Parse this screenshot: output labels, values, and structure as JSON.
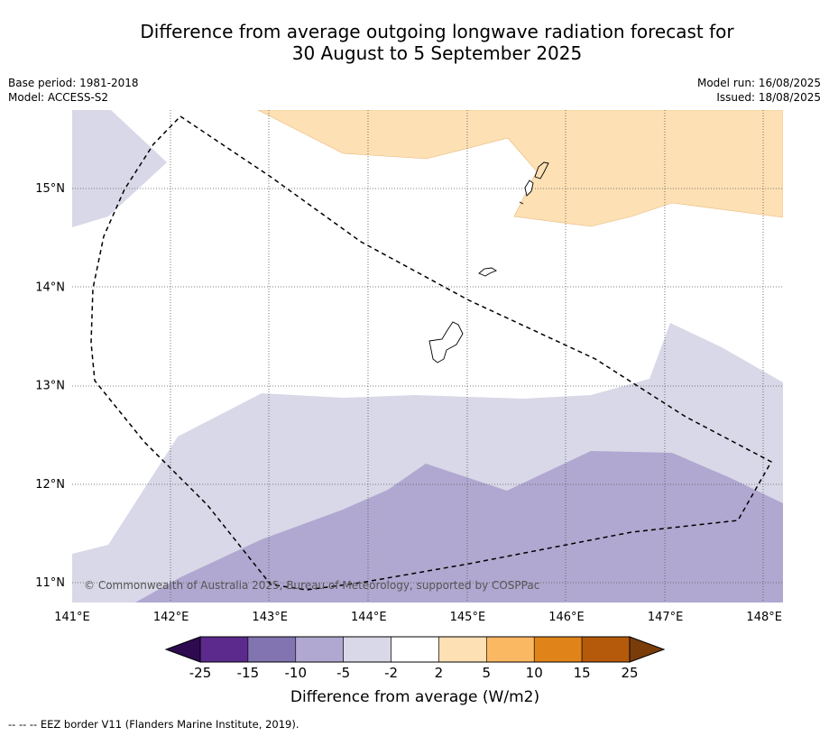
{
  "title": {
    "line1": "Difference from average outgoing longwave radiation forecast for",
    "line2": "30 August to 5 September 2025"
  },
  "meta": {
    "base_period": "Base period: 1981-2018",
    "model": "Model: ACCESS-S2",
    "model_run": "Model run: 16/08/2025",
    "issued": "Issued: 18/08/2025"
  },
  "map": {
    "lon_ticks": [
      "141°E",
      "142°E",
      "143°E",
      "144°E",
      "145°E",
      "146°E",
      "147°E",
      "148°E"
    ],
    "lat_ticks": [
      "15°N",
      "14°N",
      "13°N",
      "12°N",
      "11°N"
    ],
    "copyright": "© Commonwealth of Australia 2025, Bureau of Meteorology, supported by COSPPac"
  },
  "colorbar": {
    "ticks": [
      "-25",
      "-15",
      "-10",
      "-5",
      "-2",
      "2",
      "5",
      "10",
      "15",
      "25"
    ],
    "colors": [
      "#5b2a8c",
      "#8174b0",
      "#b0a8d0",
      "#d8d8e8",
      "#ffffff",
      "#fde0b4",
      "#fbb862",
      "#e0841a",
      "#b45a0a"
    ],
    "under_color": "#2e0a50",
    "over_color": "#7a3d0a",
    "label": "Difference from average (W/m2)"
  },
  "footnote": "--  --  -- EEZ border V11 (Flanders Marine Institute, 2019)."
}
